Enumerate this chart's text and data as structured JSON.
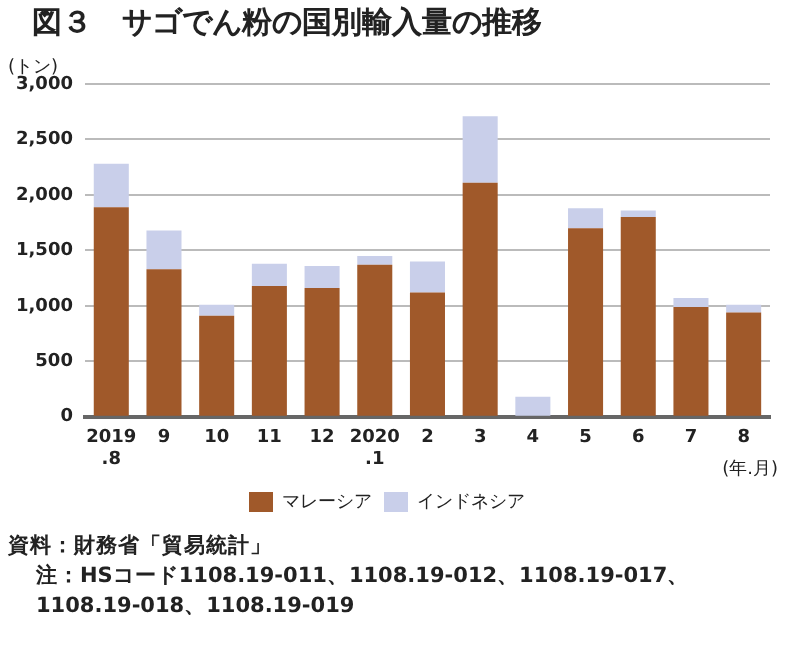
{
  "chart_data": {
    "type": "bar",
    "title": "図３　サゴでん粉の国別輸入量の推移",
    "ylabel": "(トン)",
    "xlabel": "(年.月)",
    "categories": [
      "2019\n.8",
      "9",
      "10",
      "11",
      "12",
      "2020\n.1",
      "2",
      "3",
      "4",
      "5",
      "6",
      "7",
      "8"
    ],
    "stacked": true,
    "series": [
      {
        "name": "マレーシア",
        "color": "#a0592a",
        "values": [
          1890,
          1330,
          910,
          1180,
          1160,
          1370,
          1120,
          2110,
          0,
          1700,
          1800,
          990,
          940
        ]
      },
      {
        "name": "インドネシア",
        "color": "#c9cfea",
        "values": [
          390,
          350,
          100,
          200,
          200,
          80,
          280,
          600,
          180,
          180,
          60,
          80,
          70
        ]
      }
    ],
    "ylim": [
      0,
      3000
    ],
    "yticks": [
      {
        "value": 0,
        "label": "0"
      },
      {
        "value": 500,
        "label": "500"
      },
      {
        "value": 1000,
        "label": "1,000"
      },
      {
        "value": 1500,
        "label": "1,500"
      },
      {
        "value": 2000,
        "label": "2,000"
      },
      {
        "value": 2500,
        "label": "2,500"
      },
      {
        "value": 3000,
        "label": "3,000"
      }
    ],
    "grid": "y",
    "legend": "bottom",
    "annotations": [
      "資料：財務省「貿易統計」",
      "注：HSコード1108.19-011、1108.19-012、1108.19-017、1108.19-018、1108.19-019"
    ]
  }
}
